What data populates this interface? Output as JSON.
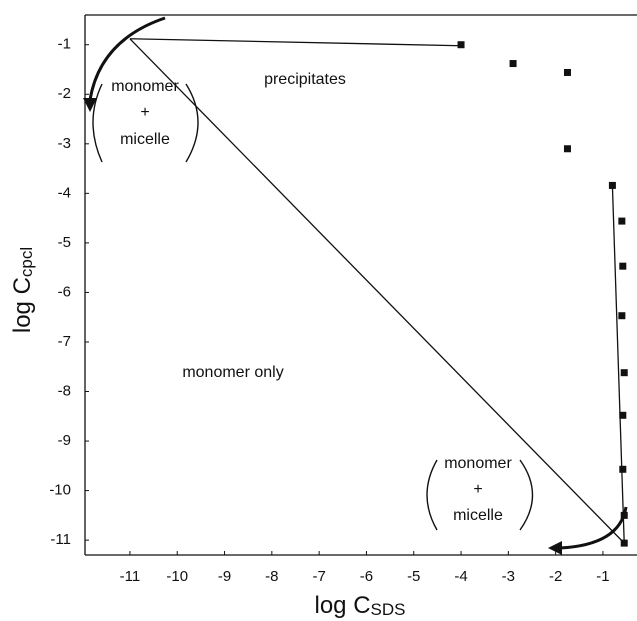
{
  "chart_data": {
    "type": "scatter",
    "xlabel": "log C",
    "xlabel_sub": "SDS",
    "ylabel": "log C",
    "ylabel_sub": "cpcl",
    "xlim": [
      -11.95,
      -0.28
    ],
    "ylim": [
      -11.3,
      -0.4
    ],
    "xticks": [
      -11,
      -10,
      -9,
      -8,
      -7,
      -6,
      -5,
      -4,
      -3,
      -2,
      -1
    ],
    "yticks": [
      -1,
      -2,
      -3,
      -4,
      -5,
      -6,
      -7,
      -8,
      -9,
      -10,
      -11
    ],
    "grid": false,
    "color": "#111111",
    "x": [
      -4,
      -2.9,
      -1.75,
      -1.75,
      -0.8,
      -0.6,
      -0.58,
      -0.6,
      -0.55,
      -0.58,
      -0.58,
      -0.55,
      -0.55
    ],
    "values": [
      -1.0,
      -1.38,
      -1.56,
      -3.1,
      -3.84,
      -4.56,
      -5.47,
      -6.47,
      -7.62,
      -8.48,
      -9.57,
      -10.5,
      -11.06
    ],
    "lines": [
      {
        "x": [
          -11,
          -4
        ],
        "values": [
          -0.88,
          -1.02
        ]
      },
      {
        "x": [
          -11,
          -0.55
        ],
        "values": [
          -0.88,
          -11.06
        ]
      },
      {
        "x": [
          -0.8,
          -0.55
        ],
        "values": [
          -3.84,
          -11.06
        ]
      }
    ],
    "annotations": [
      "precipitates",
      "monomer only",
      "monomer",
      "+",
      "micelle",
      "monomer",
      "+",
      "micelle"
    ]
  }
}
